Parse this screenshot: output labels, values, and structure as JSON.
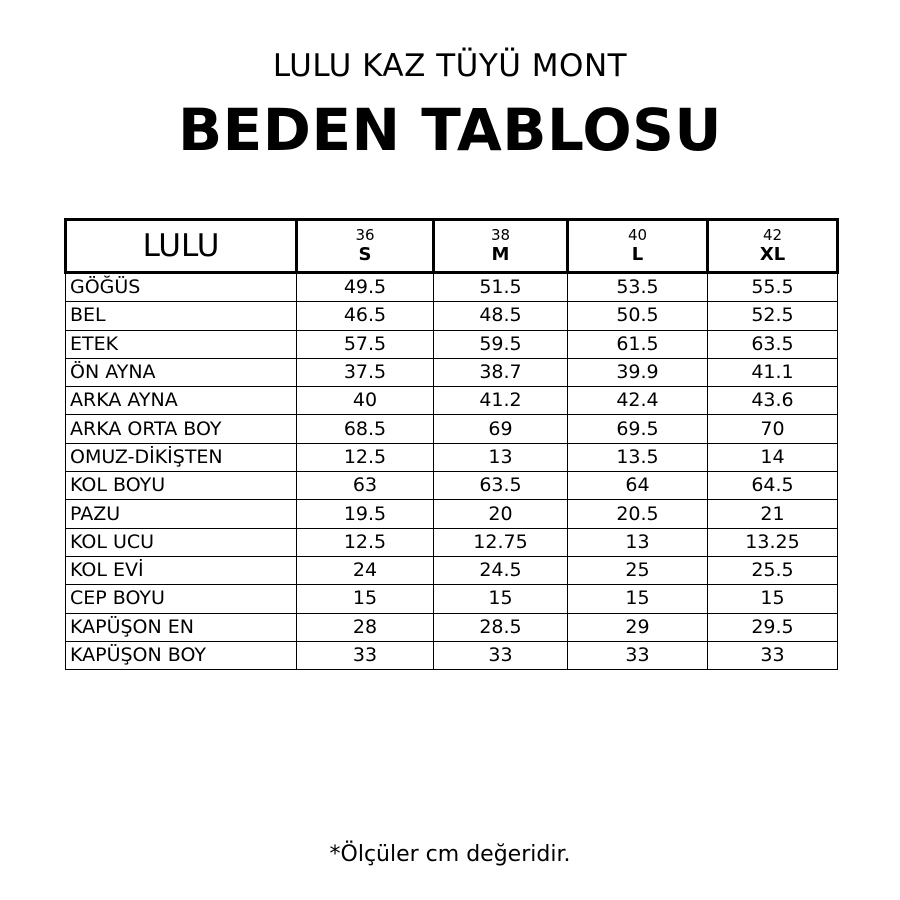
{
  "subtitle": "LULU KAZ TÜYÜ MONT",
  "title": "BEDEN TABLOSU",
  "table": {
    "corner": "LULU",
    "sizes": [
      {
        "num": "36",
        "label": "S"
      },
      {
        "num": "38",
        "label": "M"
      },
      {
        "num": "40",
        "label": "L"
      },
      {
        "num": "42",
        "label": "XL"
      }
    ],
    "rows": [
      {
        "label": "GÖĞÜS",
        "values": [
          "49.5",
          "51.5",
          "53.5",
          "55.5"
        ]
      },
      {
        "label": "BEL",
        "values": [
          "46.5",
          "48.5",
          "50.5",
          "52.5"
        ]
      },
      {
        "label": "ETEK",
        "values": [
          "57.5",
          "59.5",
          "61.5",
          "63.5"
        ]
      },
      {
        "label": "ÖN AYNA",
        "values": [
          "37.5",
          "38.7",
          "39.9",
          "41.1"
        ]
      },
      {
        "label": "ARKA AYNA",
        "values": [
          "40",
          "41.2",
          "42.4",
          "43.6"
        ]
      },
      {
        "label": "ARKA ORTA BOY",
        "values": [
          "68.5",
          "69",
          "69.5",
          "70"
        ]
      },
      {
        "label": "OMUZ-DİKİŞTEN",
        "values": [
          "12.5",
          "13",
          "13.5",
          "14"
        ]
      },
      {
        "label": "KOL BOYU",
        "values": [
          "63",
          "63.5",
          "64",
          "64.5"
        ]
      },
      {
        "label": "PAZU",
        "values": [
          "19.5",
          "20",
          "20.5",
          "21"
        ]
      },
      {
        "label": "KOL UCU",
        "values": [
          "12.5",
          "12.75",
          "13",
          "13.25"
        ]
      },
      {
        "label": "KOL EVİ",
        "values": [
          "24",
          "24.5",
          "25",
          "25.5"
        ]
      },
      {
        "label": "CEP BOYU",
        "values": [
          "15",
          "15",
          "15",
          "15"
        ]
      },
      {
        "label": "KAPÜŞON EN",
        "values": [
          "28",
          "28.5",
          "29",
          "29.5"
        ]
      },
      {
        "label": "KAPÜŞON BOY",
        "values": [
          "33",
          "33",
          "33",
          "33"
        ]
      }
    ]
  },
  "note": "*Ölçüler cm değeridir."
}
